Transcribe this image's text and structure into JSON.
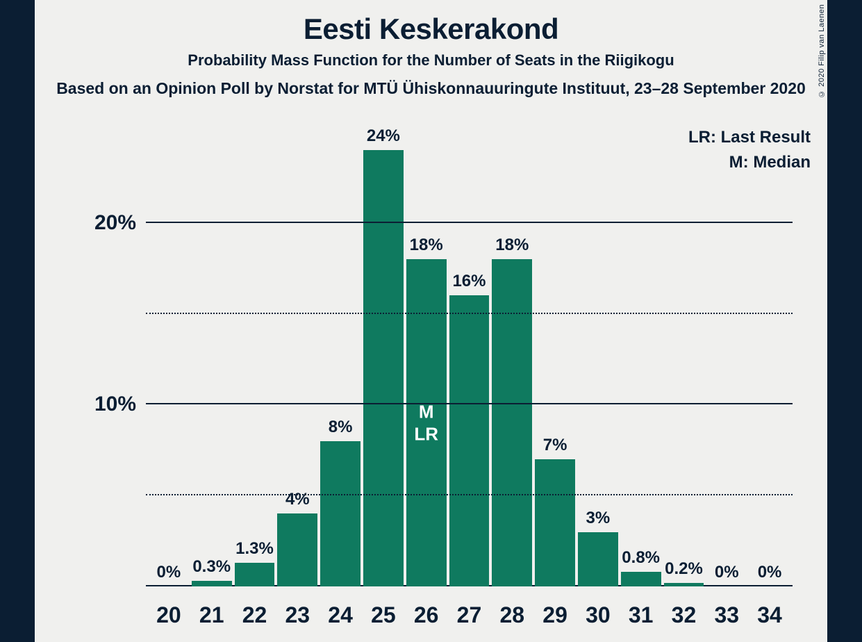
{
  "title": "Eesti Keskerakond",
  "subtitle": "Probability Mass Function for the Number of Seats in the Riigikogu",
  "source": "Based on an Opinion Poll by Norstat for MTÜ Ühiskonnauuringute Instituut, 23–28 September 2020",
  "copyright": "© 2020 Filip van Laenen",
  "legend": {
    "lr": "LR: Last Result",
    "m": "M: Median"
  },
  "chart": {
    "type": "bar",
    "bar_color": "#0f7a5f",
    "background_color": "#f0f0ee",
    "text_color": "#0b1e33",
    "annotation_color": "#ffffff",
    "side_strip_color": "#0b1e33",
    "ymax_percent": 25,
    "y_major_ticks": [
      10,
      20
    ],
    "y_minor_ticks": [
      5,
      15
    ],
    "title_fontsize": 42,
    "subtitle_fontsize": 22,
    "source_fontsize": 23,
    "axis_label_fontsize": 30,
    "bar_label_fontsize": 24,
    "x_label_fontsize": 32,
    "categories": [
      20,
      21,
      22,
      23,
      24,
      25,
      26,
      27,
      28,
      29,
      30,
      31,
      32,
      33,
      34
    ],
    "values": [
      0,
      0.3,
      1.3,
      4,
      8,
      24,
      18,
      16,
      18,
      7,
      3,
      0.8,
      0.2,
      0,
      0
    ],
    "value_labels": [
      "0%",
      "0.3%",
      "1.3%",
      "4%",
      "8%",
      "24%",
      "18%",
      "16%",
      "18%",
      "7%",
      "3%",
      "0.8%",
      "0.2%",
      "0%",
      "0%"
    ],
    "median_index": 6,
    "last_result_index": 6,
    "annotation_lines": [
      "M",
      "LR"
    ],
    "annotation_top_pct": 50
  }
}
